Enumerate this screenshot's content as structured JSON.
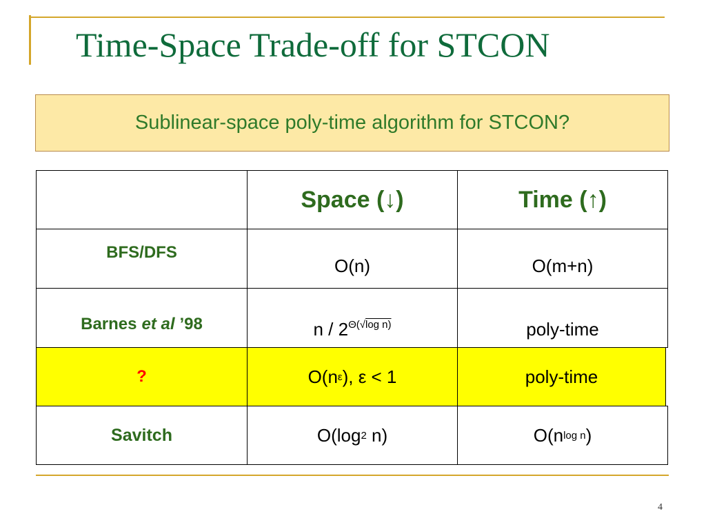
{
  "title": "Time-Space Trade-off for STCON",
  "banner": "Sublinear-space poly-time algorithm for STCON?",
  "table": {
    "header": [
      "Space (↓)",
      "Time (↑)"
    ],
    "rows": [
      [
        [
          "BFS/DFS"
        ],
        [
          "O(n)"
        ],
        [
          "O(m+n)"
        ]
      ],
      [
        [
          "Barnes",
          "et al",
          "’98"
        ],
        [
          "n / 2",
          "Θ(√",
          "log n)"
        ],
        [
          "poly-time"
        ]
      ],
      [
        [
          "?"
        ],
        [
          "O(n",
          "ε",
          "), ε < 1"
        ],
        [
          "poly-time"
        ]
      ],
      [
        [
          "Savitch"
        ],
        [
          "O(log",
          "2",
          " n)"
        ],
        [
          "O(n",
          "log n",
          ")"
        ]
      ]
    ]
  },
  "page_number": "4"
}
